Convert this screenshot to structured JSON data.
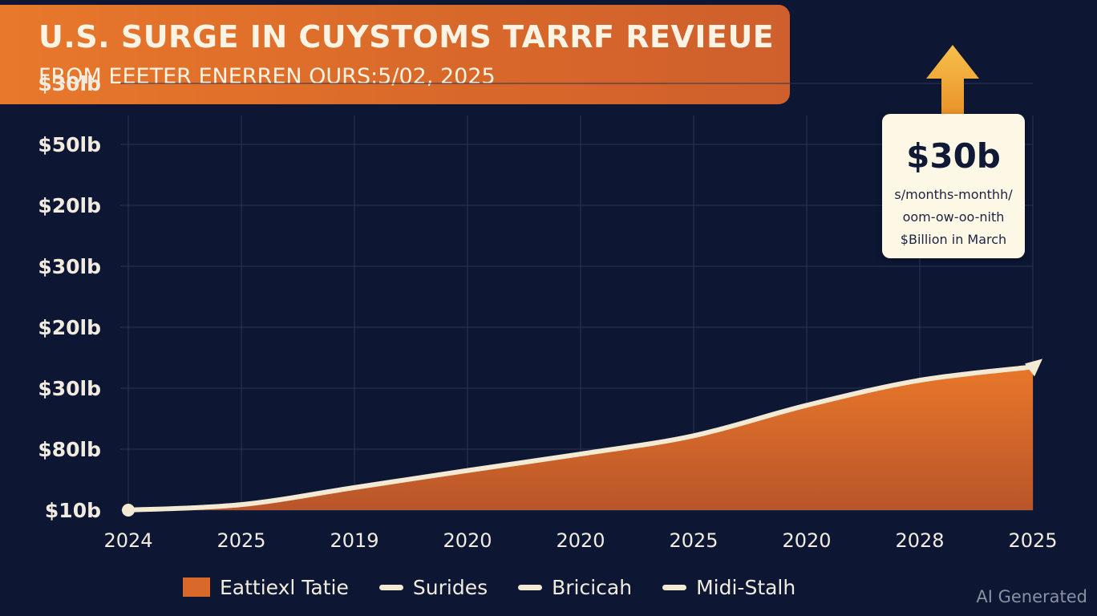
{
  "header": {
    "title": "U.S. SURGE IN CUYSTOMS TARRF REVIEUE",
    "subtitle": "FROM EEETER ENERREN OURS:5/02, 2025"
  },
  "callout": {
    "value": "$30b",
    "lines": [
      "s/months-monthh/",
      "oom-ow-oo-nith",
      "$Billion in March"
    ]
  },
  "watermark": "AI Generated",
  "colors": {
    "background": "#0d1733",
    "area_fill": "#d8692a",
    "line": "#f4ead3",
    "banner": "#e8782b",
    "arrow": "#f2a531"
  },
  "chart_data": {
    "type": "area",
    "y_tick_labels": [
      "$10b",
      "$80lb",
      "$30lb",
      "$20lb",
      "$30lb",
      "$20lb",
      "$50lb",
      "$30lb"
    ],
    "x_tick_labels": [
      "2024",
      "2025",
      "2019",
      "2020",
      "2020",
      "2025",
      "2020",
      "2028",
      "2025"
    ],
    "series": [
      {
        "values": [
          0,
          0.09,
          0.37,
          0.65,
          0.92,
          1.22,
          1.72,
          2.13,
          2.35
        ]
      }
    ],
    "ylim": [
      0,
      7
    ],
    "grid": true,
    "legend": {
      "placement": "bottom",
      "entries": [
        {
          "label": "Eattiexl Tatie",
          "marker": "box"
        },
        {
          "label": "Surides",
          "marker": "line"
        },
        {
          "label": "Bricicah",
          "marker": "line"
        },
        {
          "label": "Midi-Stalh",
          "marker": "line"
        }
      ]
    },
    "annotation": {
      "text": "$30b",
      "marker": "up-arrow"
    }
  }
}
